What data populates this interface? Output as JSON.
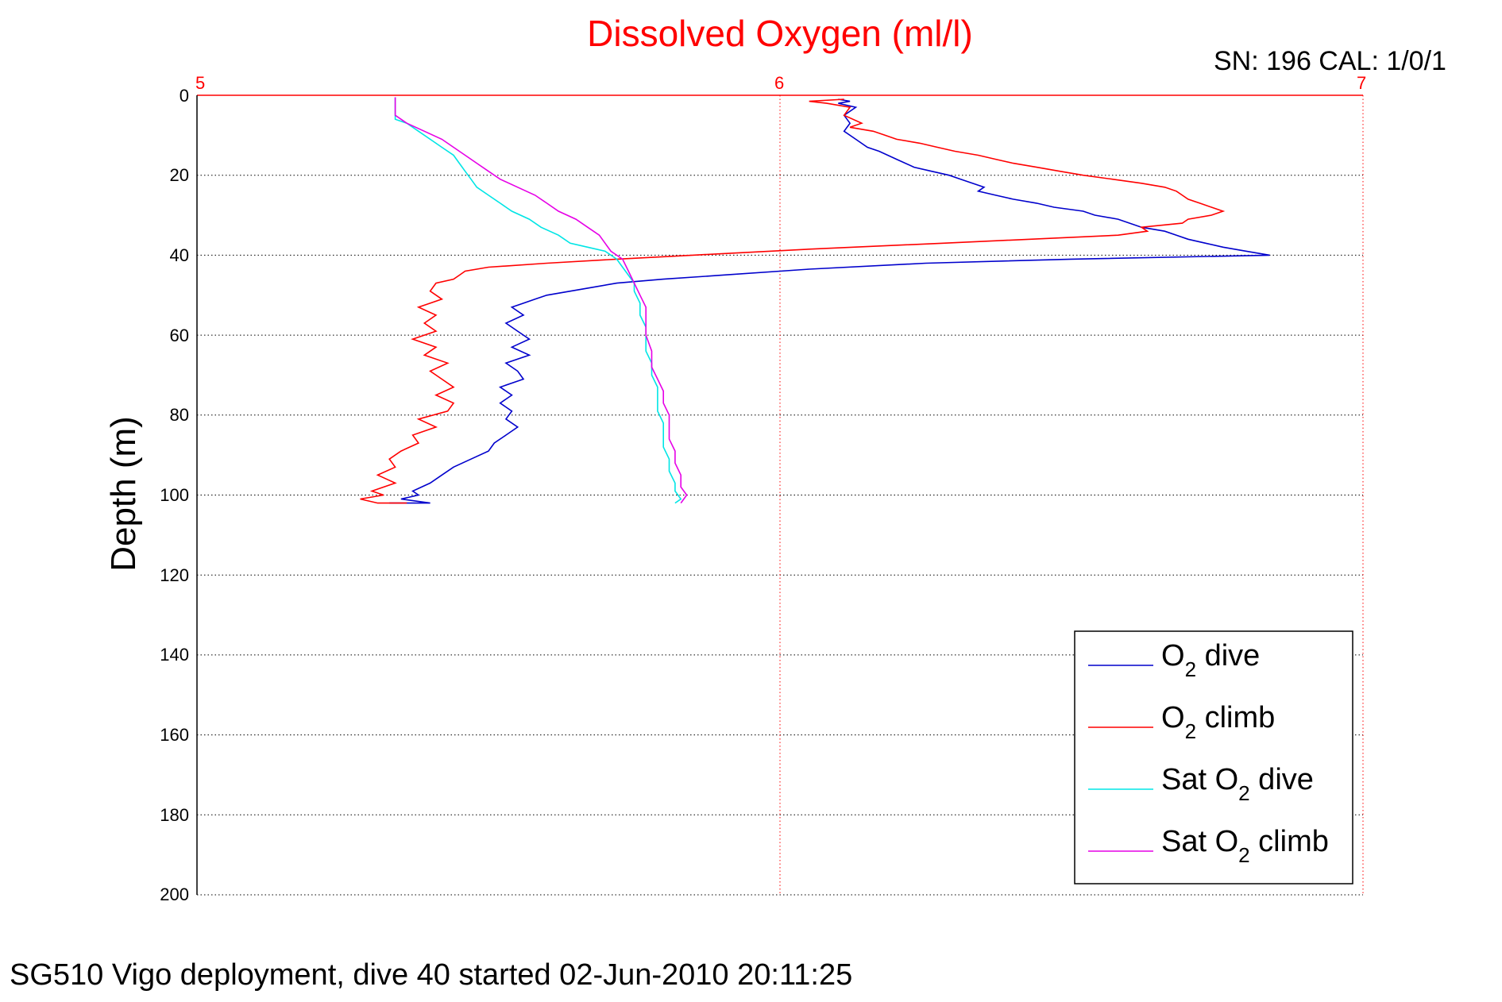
{
  "chart_data": {
    "type": "line",
    "title": "Dissolved Oxygen (ml/l)",
    "calibration_label": "SN: 196  CAL: 1/0/1",
    "xlabel": "",
    "ylabel": "Depth (m)",
    "xlim": [
      5,
      7
    ],
    "ylim": [
      0,
      200
    ],
    "y_reversed": true,
    "x_axis_position": "top",
    "xticks": [
      "5",
      "6",
      "7"
    ],
    "yticks": [
      "0",
      "20",
      "40",
      "60",
      "80",
      "100",
      "120",
      "140",
      "160",
      "180",
      "200"
    ],
    "grid": true,
    "legend_position": "bottom-right",
    "legend": [
      {
        "prefix": "O",
        "sub": "2",
        "suffix": " dive"
      },
      {
        "prefix": "O",
        "sub": "2",
        "suffix": " climb"
      },
      {
        "prefix": "Sat O",
        "sub": "2",
        "suffix": " dive"
      },
      {
        "prefix": "Sat O",
        "sub": "2",
        "suffix": " climb"
      }
    ],
    "series": [
      {
        "color": "#0000cc",
        "points": [
          [
            6.1,
            1
          ],
          [
            6.12,
            1.5
          ],
          [
            6.1,
            2
          ],
          [
            6.13,
            3
          ],
          [
            6.11,
            5
          ],
          [
            6.12,
            7
          ],
          [
            6.11,
            9
          ],
          [
            6.13,
            11
          ],
          [
            6.15,
            13
          ],
          [
            6.17,
            14
          ],
          [
            6.2,
            16
          ],
          [
            6.23,
            18
          ],
          [
            6.26,
            19
          ],
          [
            6.29,
            20
          ],
          [
            6.31,
            21
          ],
          [
            6.33,
            22
          ],
          [
            6.35,
            23
          ],
          [
            6.34,
            24
          ],
          [
            6.37,
            25
          ],
          [
            6.4,
            26
          ],
          [
            6.44,
            27
          ],
          [
            6.47,
            28
          ],
          [
            6.52,
            29
          ],
          [
            6.54,
            30
          ],
          [
            6.58,
            31
          ],
          [
            6.62,
            33
          ],
          [
            6.66,
            34
          ],
          [
            6.68,
            35
          ],
          [
            6.7,
            36
          ],
          [
            6.73,
            37
          ],
          [
            6.76,
            38
          ],
          [
            6.8,
            39
          ],
          [
            6.84,
            40
          ],
          [
            6.5,
            41
          ],
          [
            6.25,
            42
          ],
          [
            6.05,
            43.5
          ],
          [
            5.9,
            45
          ],
          [
            5.8,
            46
          ],
          [
            5.72,
            47
          ],
          [
            5.68,
            48
          ],
          [
            5.6,
            50
          ],
          [
            5.58,
            51
          ],
          [
            5.54,
            53
          ],
          [
            5.56,
            55
          ],
          [
            5.53,
            57
          ],
          [
            5.55,
            59
          ],
          [
            5.57,
            61
          ],
          [
            5.54,
            63
          ],
          [
            5.57,
            65
          ],
          [
            5.53,
            67
          ],
          [
            5.55,
            69
          ],
          [
            5.56,
            71
          ],
          [
            5.52,
            73
          ],
          [
            5.54,
            75
          ],
          [
            5.52,
            77
          ],
          [
            5.54,
            79
          ],
          [
            5.53,
            81
          ],
          [
            5.55,
            83
          ],
          [
            5.53,
            85
          ],
          [
            5.51,
            87
          ],
          [
            5.5,
            89
          ],
          [
            5.47,
            91
          ],
          [
            5.44,
            93
          ],
          [
            5.42,
            95
          ],
          [
            5.4,
            97
          ],
          [
            5.37,
            99
          ],
          [
            5.38,
            100
          ],
          [
            5.35,
            101
          ],
          [
            5.4,
            102
          ],
          [
            5.33,
            102
          ]
        ]
      },
      {
        "color": "#ff0000",
        "points": [
          [
            6.11,
            1
          ],
          [
            6.05,
            1.5
          ],
          [
            6.08,
            2
          ],
          [
            6.12,
            3
          ],
          [
            6.11,
            5
          ],
          [
            6.14,
            7
          ],
          [
            6.12,
            8
          ],
          [
            6.16,
            9
          ],
          [
            6.18,
            10
          ],
          [
            6.2,
            11
          ],
          [
            6.24,
            12
          ],
          [
            6.27,
            13
          ],
          [
            6.3,
            14
          ],
          [
            6.34,
            15
          ],
          [
            6.37,
            16
          ],
          [
            6.4,
            17
          ],
          [
            6.44,
            18
          ],
          [
            6.48,
            19
          ],
          [
            6.52,
            20
          ],
          [
            6.57,
            21
          ],
          [
            6.62,
            22
          ],
          [
            6.66,
            23
          ],
          [
            6.68,
            24
          ],
          [
            6.69,
            25
          ],
          [
            6.7,
            26
          ],
          [
            6.72,
            27
          ],
          [
            6.74,
            28
          ],
          [
            6.76,
            29
          ],
          [
            6.74,
            30
          ],
          [
            6.7,
            31
          ],
          [
            6.69,
            32
          ],
          [
            6.62,
            33
          ],
          [
            6.63,
            34
          ],
          [
            6.58,
            35
          ],
          [
            6.28,
            37
          ],
          [
            6.05,
            38.5
          ],
          [
            5.85,
            40
          ],
          [
            5.72,
            41
          ],
          [
            5.6,
            42
          ],
          [
            5.5,
            43
          ],
          [
            5.46,
            44
          ],
          [
            5.45,
            45
          ],
          [
            5.44,
            46
          ],
          [
            5.41,
            47
          ],
          [
            5.4,
            49
          ],
          [
            5.42,
            51
          ],
          [
            5.38,
            53
          ],
          [
            5.41,
            55
          ],
          [
            5.39,
            57
          ],
          [
            5.41,
            59
          ],
          [
            5.37,
            61
          ],
          [
            5.41,
            63
          ],
          [
            5.39,
            65
          ],
          [
            5.43,
            67
          ],
          [
            5.4,
            69
          ],
          [
            5.42,
            71
          ],
          [
            5.44,
            73
          ],
          [
            5.41,
            75
          ],
          [
            5.44,
            77
          ],
          [
            5.43,
            79
          ],
          [
            5.38,
            81
          ],
          [
            5.41,
            83
          ],
          [
            5.37,
            85
          ],
          [
            5.38,
            87
          ],
          [
            5.35,
            89
          ],
          [
            5.33,
            91
          ],
          [
            5.34,
            93
          ],
          [
            5.31,
            95
          ],
          [
            5.34,
            97
          ],
          [
            5.3,
            99
          ],
          [
            5.32,
            100
          ],
          [
            5.28,
            101
          ],
          [
            5.31,
            102
          ],
          [
            5.36,
            102
          ]
        ]
      },
      {
        "color": "#00e5e5",
        "points": [
          [
            5.34,
            0.5
          ],
          [
            5.34,
            3
          ],
          [
            5.34,
            6
          ],
          [
            5.36,
            7
          ],
          [
            5.38,
            9
          ],
          [
            5.4,
            11
          ],
          [
            5.42,
            13
          ],
          [
            5.44,
            15
          ],
          [
            5.45,
            17
          ],
          [
            5.46,
            19
          ],
          [
            5.47,
            21
          ],
          [
            5.48,
            23
          ],
          [
            5.5,
            25
          ],
          [
            5.52,
            27
          ],
          [
            5.54,
            29
          ],
          [
            5.57,
            31
          ],
          [
            5.59,
            33
          ],
          [
            5.62,
            35
          ],
          [
            5.64,
            37
          ],
          [
            5.67,
            38
          ],
          [
            5.7,
            39
          ],
          [
            5.72,
            41
          ],
          [
            5.73,
            43
          ],
          [
            5.74,
            45
          ],
          [
            5.75,
            47
          ],
          [
            5.75,
            49
          ],
          [
            5.76,
            52
          ],
          [
            5.76,
            55
          ],
          [
            5.77,
            58
          ],
          [
            5.77,
            61
          ],
          [
            5.77,
            64
          ],
          [
            5.78,
            67
          ],
          [
            5.78,
            70
          ],
          [
            5.79,
            73
          ],
          [
            5.79,
            76
          ],
          [
            5.79,
            79
          ],
          [
            5.8,
            82
          ],
          [
            5.8,
            85
          ],
          [
            5.8,
            88
          ],
          [
            5.81,
            91
          ],
          [
            5.81,
            94
          ],
          [
            5.82,
            97
          ],
          [
            5.82,
            99
          ],
          [
            5.83,
            101
          ],
          [
            5.82,
            102
          ]
        ]
      },
      {
        "color": "#e600e6",
        "points": [
          [
            5.34,
            0.5
          ],
          [
            5.34,
            3
          ],
          [
            5.34,
            5
          ],
          [
            5.36,
            7
          ],
          [
            5.39,
            9
          ],
          [
            5.42,
            11
          ],
          [
            5.44,
            13
          ],
          [
            5.46,
            15
          ],
          [
            5.48,
            17
          ],
          [
            5.5,
            19
          ],
          [
            5.52,
            21
          ],
          [
            5.55,
            23
          ],
          [
            5.58,
            25
          ],
          [
            5.6,
            27
          ],
          [
            5.62,
            29
          ],
          [
            5.65,
            31
          ],
          [
            5.67,
            33
          ],
          [
            5.69,
            35
          ],
          [
            5.7,
            37
          ],
          [
            5.71,
            39
          ],
          [
            5.73,
            41
          ],
          [
            5.74,
            44
          ],
          [
            5.75,
            47
          ],
          [
            5.76,
            50
          ],
          [
            5.77,
            53
          ],
          [
            5.77,
            56
          ],
          [
            5.77,
            60
          ],
          [
            5.78,
            64
          ],
          [
            5.78,
            68
          ],
          [
            5.79,
            71
          ],
          [
            5.8,
            74
          ],
          [
            5.8,
            77
          ],
          [
            5.81,
            80
          ],
          [
            5.81,
            83
          ],
          [
            5.81,
            86
          ],
          [
            5.82,
            89
          ],
          [
            5.82,
            92
          ],
          [
            5.83,
            95
          ],
          [
            5.83,
            98
          ],
          [
            5.84,
            100
          ],
          [
            5.83,
            102
          ]
        ]
      }
    ]
  },
  "footer": "SG510 Vigo deployment, dive 40 started 02-Jun-2010 20:11:25"
}
